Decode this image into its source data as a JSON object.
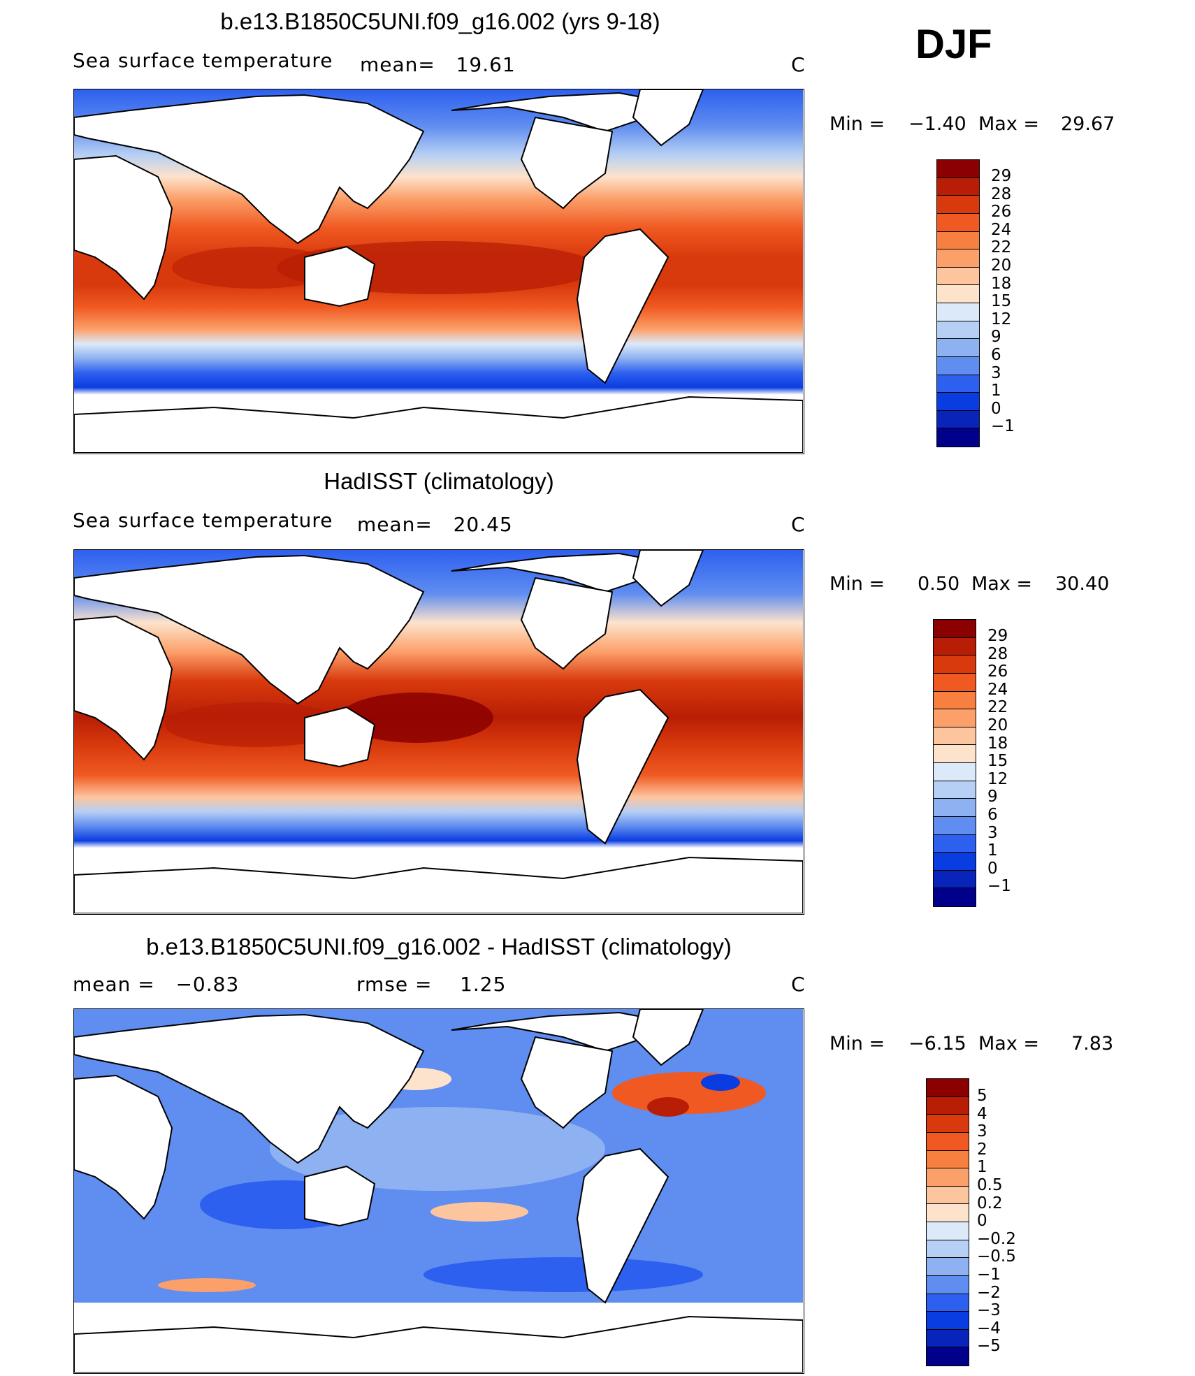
{
  "season": "DJF",
  "panels": [
    {
      "title": "b.e13.B1850C5UNI.f09_g16.002 (yrs 9-18)",
      "field_label": "Sea surface temperature",
      "stat1": "mean=   19.61",
      "stat2": "",
      "unit": "C",
      "min_label": "Min =",
      "min_value": "−1.40",
      "max_label": "Max =",
      "max_value": "29.67",
      "colorbar": {
        "colors": [
          "#8b0000",
          "#b81e05",
          "#d93a0d",
          "#f05a22",
          "#f77f3f",
          "#fca06a",
          "#fdc59e",
          "#fde3cc",
          "#dce9f8",
          "#b6cff4",
          "#8eb1f1",
          "#5f8df0",
          "#2e60ef",
          "#0a3de1",
          "#0824bb",
          "#00008a"
        ],
        "labels": [
          "29",
          "28",
          "26",
          "24",
          "22",
          "20",
          "18",
          "15",
          "12",
          "9",
          "6",
          "3",
          "1",
          "0",
          "−1"
        ]
      }
    },
    {
      "title": "HadISST (climatology)",
      "field_label": "Sea surface temperature",
      "stat1": "mean=   20.45",
      "stat2": "",
      "unit": "C",
      "min_label": "Min =",
      "min_value": "0.50",
      "max_label": "Max =",
      "max_value": "30.40",
      "colorbar": {
        "colors": [
          "#8b0000",
          "#b81e05",
          "#d93a0d",
          "#f05a22",
          "#f77f3f",
          "#fca06a",
          "#fdc59e",
          "#fde3cc",
          "#dce9f8",
          "#b6cff4",
          "#8eb1f1",
          "#5f8df0",
          "#2e60ef",
          "#0a3de1",
          "#0824bb",
          "#00008a"
        ],
        "labels": [
          "29",
          "28",
          "26",
          "24",
          "22",
          "20",
          "18",
          "15",
          "12",
          "9",
          "6",
          "3",
          "1",
          "0",
          "−1"
        ]
      }
    },
    {
      "title": "b.e13.B1850C5UNI.f09_g16.002 - HadISST (climatology)",
      "field_label": "",
      "stat1": "mean =   −0.83",
      "stat2": "rmse =    1.25",
      "unit": "C",
      "min_label": "Min =",
      "min_value": "−6.15",
      "max_label": "Max =",
      "max_value": "7.83",
      "colorbar": {
        "colors": [
          "#8b0000",
          "#b81e05",
          "#d93a0d",
          "#f05a22",
          "#f77f3f",
          "#fca06a",
          "#fdc59e",
          "#fde3cc",
          "#dce9f8",
          "#b6cff4",
          "#8eb1f1",
          "#5f8df0",
          "#2e60ef",
          "#0a3de1",
          "#0824bb",
          "#00008a"
        ],
        "labels": [
          "5",
          "4",
          "3",
          "2",
          "1",
          "0.5",
          "0.2",
          "0",
          "−0.2",
          "−0.5",
          "−1",
          "−2",
          "−3",
          "−4",
          "−5"
        ]
      }
    }
  ]
}
